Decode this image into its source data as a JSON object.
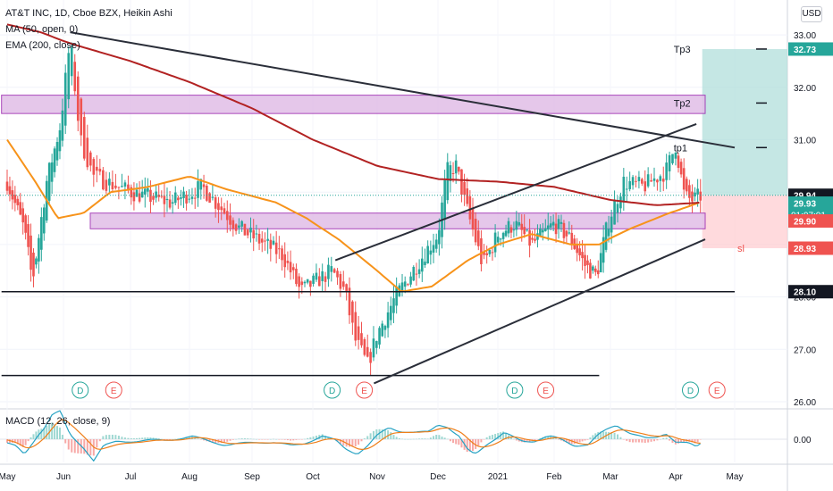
{
  "header": {
    "symbol_line": "AT&T INC, 1D, Cboe BZX, Heikin Ashi",
    "ma_label": "MA (50, open, 0)",
    "ema_label": "EMA (200, close)",
    "currency": "USD"
  },
  "macd": {
    "label": "MACD (12, 26, close, 9)",
    "zero_label": "0.00"
  },
  "colors": {
    "up": "#26a69a",
    "down": "#ef5350",
    "ma50": "#f7931a",
    "ema200": "#b22222",
    "zone": "#e1bee7",
    "zone_border": "#9c27b0",
    "trend": "#2a2e39",
    "tp_zone": "#b2dfdb",
    "sl_zone": "#ffcdd2",
    "macd_line": "#26a2c3",
    "signal_line": "#ef7f1a"
  },
  "chart_data": {
    "type": "candlestick",
    "instrument": "AT&T INC",
    "timeframe": "1D",
    "y_axis": {
      "ticks": [
        26.0,
        27.0,
        28.0,
        29.0,
        30.0,
        31.0,
        32.0,
        33.0
      ],
      "range": [
        25.95,
        33.3
      ]
    },
    "x_axis": {
      "ticks": [
        "May",
        "Jun",
        "Jul",
        "Aug",
        "Sep",
        "Oct",
        "Nov",
        "Dec",
        "2021",
        "Feb",
        "Mar",
        "Apr",
        "May"
      ]
    },
    "price_key_points": [
      {
        "m": 0,
        "p": 30.2
      },
      {
        "m": 0.3,
        "p": 29.3
      },
      {
        "m": 0.45,
        "p": 28.3
      },
      {
        "m": 0.7,
        "p": 30.2
      },
      {
        "m": 0.95,
        "p": 31.3
      },
      {
        "m": 1.1,
        "p": 32.9
      },
      {
        "m": 1.25,
        "p": 31.0
      },
      {
        "m": 1.45,
        "p": 30.3
      },
      {
        "m": 2.0,
        "p": 30.0
      },
      {
        "m": 2.7,
        "p": 29.8
      },
      {
        "m": 3.2,
        "p": 30.1
      },
      {
        "m": 3.8,
        "p": 29.3
      },
      {
        "m": 4.5,
        "p": 28.8
      },
      {
        "m": 4.8,
        "p": 28.1
      },
      {
        "m": 5.3,
        "p": 28.5
      },
      {
        "m": 5.5,
        "p": 28.1
      },
      {
        "m": 5.65,
        "p": 27.2
      },
      {
        "m": 5.85,
        "p": 26.7
      },
      {
        "m": 6.0,
        "p": 27.3
      },
      {
        "m": 6.3,
        "p": 28.0
      },
      {
        "m": 6.7,
        "p": 28.7
      },
      {
        "m": 7.0,
        "p": 29.2
      },
      {
        "m": 7.15,
        "p": 30.4
      },
      {
        "m": 7.3,
        "p": 30.5
      },
      {
        "m": 7.45,
        "p": 29.8
      },
      {
        "m": 7.75,
        "p": 28.6
      },
      {
        "m": 8.0,
        "p": 29.2
      },
      {
        "m": 8.3,
        "p": 29.4
      },
      {
        "m": 8.6,
        "p": 29.0
      },
      {
        "m": 9.0,
        "p": 29.4
      },
      {
        "m": 9.3,
        "p": 29.1
      },
      {
        "m": 9.55,
        "p": 28.6
      },
      {
        "m": 9.75,
        "p": 28.4
      },
      {
        "m": 9.95,
        "p": 29.4
      },
      {
        "m": 10.2,
        "p": 30.2
      },
      {
        "m": 10.5,
        "p": 30.1
      },
      {
        "m": 10.85,
        "p": 30.4
      },
      {
        "m": 11.0,
        "p": 30.9
      },
      {
        "m": 11.15,
        "p": 29.9
      },
      {
        "m": 11.3,
        "p": 29.85
      },
      {
        "m": 11.42,
        "p": 29.93
      }
    ],
    "ma50_key_points": [
      {
        "m": 0,
        "p": 31.0
      },
      {
        "m": 0.5,
        "p": 30.2
      },
      {
        "m": 0.9,
        "p": 29.5
      },
      {
        "m": 1.3,
        "p": 29.6
      },
      {
        "m": 1.7,
        "p": 30.0
      },
      {
        "m": 2.3,
        "p": 30.1
      },
      {
        "m": 3.0,
        "p": 30.3
      },
      {
        "m": 3.6,
        "p": 30.05
      },
      {
        "m": 4.4,
        "p": 29.8
      },
      {
        "m": 4.9,
        "p": 29.5
      },
      {
        "m": 5.4,
        "p": 29.1
      },
      {
        "m": 5.9,
        "p": 28.6
      },
      {
        "m": 6.4,
        "p": 28.1
      },
      {
        "m": 6.9,
        "p": 28.2
      },
      {
        "m": 7.5,
        "p": 28.7
      },
      {
        "m": 8.0,
        "p": 29.0
      },
      {
        "m": 8.6,
        "p": 29.2
      },
      {
        "m": 9.3,
        "p": 29.0
      },
      {
        "m": 9.8,
        "p": 29.0
      },
      {
        "m": 10.3,
        "p": 29.3
      },
      {
        "m": 10.9,
        "p": 29.6
      },
      {
        "m": 11.4,
        "p": 29.8
      }
    ],
    "ema200_key_points": [
      {
        "m": 0,
        "p": 33.2
      },
      {
        "m": 0.6,
        "p": 33.05
      },
      {
        "m": 1.2,
        "p": 32.8
      },
      {
        "m": 2.0,
        "p": 32.5
      },
      {
        "m": 3.0,
        "p": 32.1
      },
      {
        "m": 4.0,
        "p": 31.6
      },
      {
        "m": 5.0,
        "p": 31.0
      },
      {
        "m": 6.0,
        "p": 30.5
      },
      {
        "m": 7.0,
        "p": 30.25
      },
      {
        "m": 8.0,
        "p": 30.2
      },
      {
        "m": 9.0,
        "p": 30.1
      },
      {
        "m": 10.0,
        "p": 29.85
      },
      {
        "m": 10.7,
        "p": 29.75
      },
      {
        "m": 11.4,
        "p": 29.8
      }
    ],
    "zones": [
      {
        "from_m": -0.1,
        "to_m": 11.5,
        "low": 31.5,
        "high": 31.85
      },
      {
        "from_m": 1.4,
        "to_m": 11.5,
        "low": 29.3,
        "high": 29.6
      }
    ],
    "horizontal_lines": [
      {
        "price": 28.1,
        "from_m": -0.1,
        "to_m": 12.0
      },
      {
        "price": 26.5,
        "from_m": -0.1,
        "to_m": 9.8
      }
    ],
    "trendlines": [
      {
        "m1": 1.1,
        "p1": 33.05,
        "m2": 12.0,
        "p2": 30.85
      },
      {
        "m1": 5.35,
        "p1": 28.7,
        "m2": 11.35,
        "p2": 31.3
      },
      {
        "m1": 5.95,
        "p1": 26.35,
        "m2": 11.5,
        "p2": 29.1
      }
    ],
    "position": {
      "entry": 29.94,
      "tp1": 30.85,
      "tp2": 31.7,
      "tp3": 32.73,
      "sl": 28.93,
      "from_m": 11.45,
      "to_m": 12.0,
      "labels": {
        "tp1": "tp1",
        "tp2": "Tp2",
        "tp3": "Tp3",
        "sl": "sl"
      }
    },
    "events": [
      {
        "type": "D",
        "m": 1.25
      },
      {
        "type": "E",
        "m": 1.75
      },
      {
        "type": "D",
        "m": 5.3
      },
      {
        "type": "E",
        "m": 5.8
      },
      {
        "type": "D",
        "m": 8.3
      },
      {
        "type": "E",
        "m": 8.85
      },
      {
        "type": "D",
        "m": 11.25
      },
      {
        "type": "E",
        "m": 11.7
      }
    ],
    "price_labels": [
      {
        "value": "32.73",
        "price": 32.73,
        "kind": "tp"
      },
      {
        "value": "29.94",
        "price": 29.94,
        "kind": "entry"
      },
      {
        "value": "29.93",
        "price": 29.79,
        "kind": "last",
        "sub": "01:07:01"
      },
      {
        "value": "29.90",
        "price": 29.45,
        "kind": "down"
      },
      {
        "value": "28.93",
        "price": 28.93,
        "kind": "sl"
      },
      {
        "value": "28.10",
        "price": 28.1,
        "kind": "line"
      }
    ]
  }
}
